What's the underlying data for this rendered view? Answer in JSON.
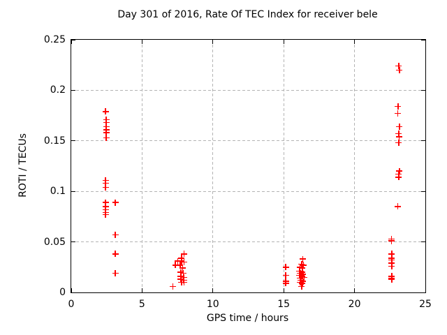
{
  "title": "Day 301 of 2016, Rate Of TEC Index for receiver bele",
  "chart_data": {
    "type": "scatter",
    "title": "Day 301 of 2016, Rate Of TEC Index for receiver bele",
    "xlabel": "GPS time / hours",
    "ylabel": "ROTI / TECUs",
    "xlim": [
      0,
      25
    ],
    "ylim": [
      0,
      0.25
    ],
    "xticks": [
      0,
      5,
      10,
      15,
      20,
      25
    ],
    "xtick_labels": [
      "0",
      "5",
      "10",
      "15",
      "20",
      "25"
    ],
    "yticks": [
      0,
      0.05,
      0.1,
      0.15,
      0.2,
      0.25
    ],
    "ytick_labels": [
      "0",
      "0.05",
      "0.1",
      "0.15",
      "0.2",
      "0.25"
    ],
    "grid": true,
    "grid_style": "dashed",
    "grid_color": "#b3b3b3",
    "marker": "plus",
    "marker_color": "#ff0000",
    "legend": "none",
    "series": [
      {
        "name": "ROTI",
        "points": [
          [
            2.42,
            0.179
          ],
          [
            2.47,
            0.171
          ],
          [
            2.47,
            0.168
          ],
          [
            2.47,
            0.164
          ],
          [
            2.47,
            0.161
          ],
          [
            2.47,
            0.158
          ],
          [
            2.47,
            0.153
          ],
          [
            2.42,
            0.111
          ],
          [
            2.42,
            0.108
          ],
          [
            2.42,
            0.104
          ],
          [
            2.42,
            0.089
          ],
          [
            3.11,
            0.089
          ],
          [
            2.42,
            0.085
          ],
          [
            2.42,
            0.082
          ],
          [
            2.42,
            0.079
          ],
          [
            2.42,
            0.077
          ],
          [
            3.11,
            0.057
          ],
          [
            3.11,
            0.038
          ],
          [
            3.11,
            0.019
          ],
          [
            7.97,
            0.038
          ],
          [
            7.79,
            0.034
          ],
          [
            7.51,
            0.031
          ],
          [
            7.79,
            0.031
          ],
          [
            7.97,
            0.03
          ],
          [
            7.35,
            0.027
          ],
          [
            7.68,
            0.027
          ],
          [
            7.87,
            0.024
          ],
          [
            7.74,
            0.02
          ],
          [
            7.92,
            0.019
          ],
          [
            7.74,
            0.016
          ],
          [
            7.95,
            0.015
          ],
          [
            7.74,
            0.013
          ],
          [
            7.95,
            0.012
          ],
          [
            7.79,
            0.01
          ],
          [
            7.97,
            0.01
          ],
          [
            7.18,
            0.006
          ],
          [
            15.15,
            0.025
          ],
          [
            15.15,
            0.017
          ],
          [
            15.15,
            0.011
          ],
          [
            15.15,
            0.009
          ],
          [
            16.34,
            0.033
          ],
          [
            16.26,
            0.028
          ],
          [
            16.39,
            0.027
          ],
          [
            16.14,
            0.025
          ],
          [
            16.31,
            0.024
          ],
          [
            16.12,
            0.021
          ],
          [
            16.32,
            0.02
          ],
          [
            16.17,
            0.019
          ],
          [
            16.37,
            0.018
          ],
          [
            16.12,
            0.017
          ],
          [
            16.29,
            0.016
          ],
          [
            16.44,
            0.015
          ],
          [
            16.17,
            0.014
          ],
          [
            16.22,
            0.012
          ],
          [
            16.37,
            0.011
          ],
          [
            16.17,
            0.01
          ],
          [
            16.32,
            0.009
          ],
          [
            16.27,
            0.006
          ],
          [
            23.12,
            0.224
          ],
          [
            23.17,
            0.22
          ],
          [
            23.07,
            0.184
          ],
          [
            23.04,
            0.177
          ],
          [
            23.17,
            0.164
          ],
          [
            23.12,
            0.157
          ],
          [
            23.15,
            0.154
          ],
          [
            23.12,
            0.148
          ],
          [
            23.17,
            0.12
          ],
          [
            23.12,
            0.117
          ],
          [
            23.12,
            0.114
          ],
          [
            23.04,
            0.085
          ],
          [
            22.61,
            0.053
          ],
          [
            22.61,
            0.051
          ],
          [
            22.63,
            0.038
          ],
          [
            22.63,
            0.034
          ],
          [
            22.63,
            0.032
          ],
          [
            22.63,
            0.029
          ],
          [
            22.63,
            0.026
          ],
          [
            22.63,
            0.016
          ],
          [
            22.63,
            0.014
          ],
          [
            22.63,
            0.013
          ]
        ]
      }
    ]
  }
}
